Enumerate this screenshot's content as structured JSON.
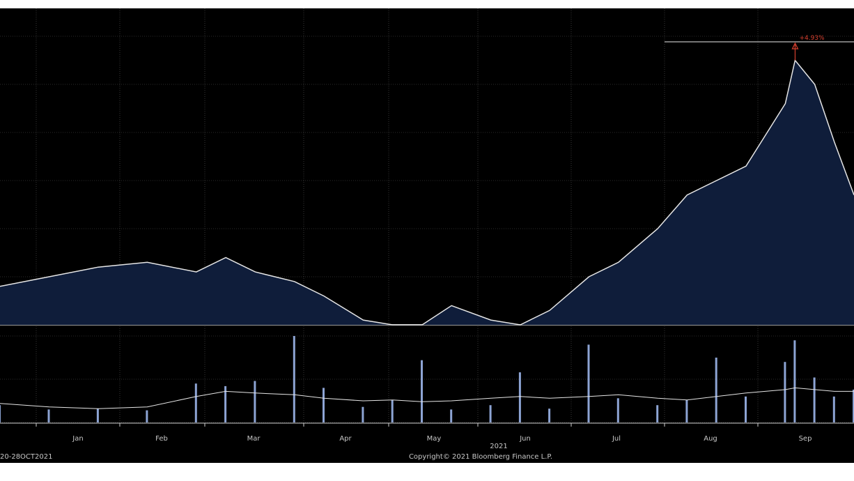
{
  "chart_data": {
    "type": "area",
    "title": "",
    "xlabel": "",
    "ylabel": "",
    "grid": true,
    "year_label": "2021",
    "date_range_label": "20-28OCT2021",
    "copyright": "Copyright© 2021 Bloomberg Finance L.P.",
    "annotation": {
      "label": "+4.93%",
      "color": "#d8402f"
    },
    "x_ticks": [
      "Jan",
      "Feb",
      "Mar",
      "Apr",
      "May",
      "Jun",
      "Jul",
      "Aug",
      "Sep"
    ],
    "colors": {
      "area_fill": "#0f1d3a",
      "price_line": "#e6e6e6",
      "volume_bar": "#8da4d4",
      "volume_avg": "#e6e6e6",
      "grid": "#5a5a5a"
    },
    "price_series": {
      "name": "",
      "x": [
        0,
        0.5,
        1,
        1.5,
        2,
        2.3,
        2.6,
        3,
        3.3,
        3.7,
        4,
        4.3,
        4.6,
        5,
        5.3,
        5.6,
        6,
        6.3,
        6.7,
        7,
        7.3,
        7.6,
        8,
        8.1,
        8.3,
        8.5,
        8.7
      ],
      "values": [
        8,
        10,
        12,
        13,
        11,
        14,
        11,
        9,
        6,
        1,
        0,
        0,
        4,
        1,
        0,
        3,
        10,
        13,
        20,
        27,
        30,
        33,
        46,
        55,
        50,
        38,
        27
      ]
    },
    "volume_series": {
      "name": "",
      "x": [
        0,
        0.5,
        1,
        1.5,
        2,
        2.3,
        2.6,
        3,
        3.3,
        3.7,
        4,
        4.3,
        4.6,
        5,
        5.3,
        5.6,
        6,
        6.3,
        6.7,
        7,
        7.3,
        7.6,
        8,
        8.1,
        8.3,
        8.5,
        8.7
      ],
      "values": [
        20,
        15,
        16,
        14,
        45,
        42,
        48,
        100,
        40,
        18,
        26,
        72,
        15,
        20,
        58,
        16,
        90,
        28,
        20,
        26,
        75,
        30,
        70,
        95,
        52,
        30,
        38
      ],
      "average": [
        22,
        18,
        16,
        18,
        30,
        36,
        34,
        32,
        28,
        25,
        26,
        24,
        25,
        28,
        30,
        28,
        30,
        32,
        28,
        26,
        30,
        34,
        38,
        40,
        38,
        36,
        36
      ]
    }
  }
}
